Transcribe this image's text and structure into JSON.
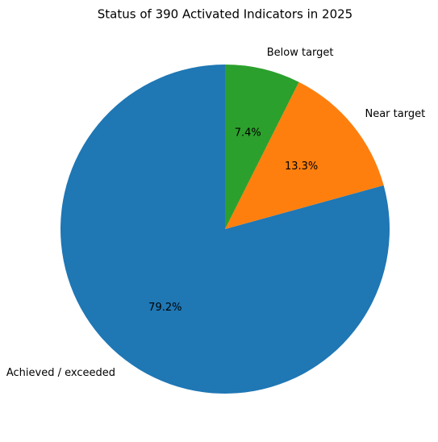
{
  "chart_data": {
    "type": "pie",
    "title": "Status of 390 Activated Indicators in 2025",
    "categories": [
      "Achieved / exceeded",
      "Near target",
      "Below target"
    ],
    "values": [
      79.2,
      13.3,
      7.4
    ],
    "value_labels": [
      "79.2%",
      "13.3%",
      "7.4%"
    ],
    "colors": [
      "#1f77b4",
      "#ff7f0e",
      "#2ca02c"
    ]
  }
}
